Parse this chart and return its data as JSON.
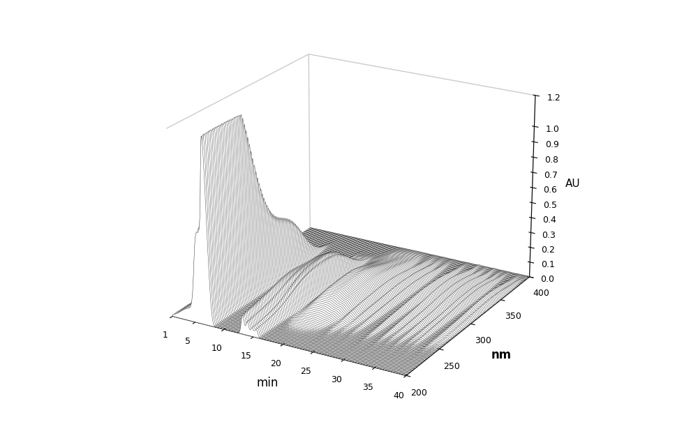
{
  "time_min": 1,
  "time_max": 40,
  "nm_min": 200,
  "nm_max": 400,
  "au_min": 0,
  "au_max": 1.2,
  "time_ticks": [
    1,
    5,
    10,
    15,
    20,
    25,
    30,
    35,
    40
  ],
  "nm_ticks": [
    200,
    250,
    300,
    350,
    400
  ],
  "au_ticks": [
    0,
    0.1,
    0.2,
    0.3,
    0.4,
    0.5,
    0.6,
    0.7,
    0.8,
    0.9,
    1.0,
    1.2
  ],
  "xlabel": "min",
  "ylabel": "nm",
  "zlabel": "AU",
  "figsize": [
    10,
    6.05
  ],
  "dpi": 100,
  "line_color": "#444444",
  "fill_color": "#ffffff",
  "background_color": "#ffffff",
  "elev": 22,
  "azim": -60
}
